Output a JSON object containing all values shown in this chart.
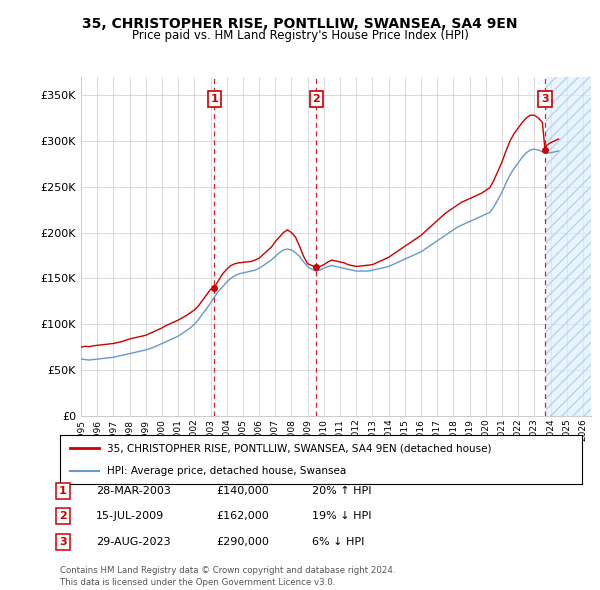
{
  "title": "35, CHRISTOPHER RISE, PONTLLIW, SWANSEA, SA4 9EN",
  "subtitle": "Price paid vs. HM Land Registry's House Price Index (HPI)",
  "ylabel_ticks": [
    "£0",
    "£50K",
    "£100K",
    "£150K",
    "£200K",
    "£250K",
    "£300K",
    "£350K"
  ],
  "ytick_values": [
    0,
    50000,
    100000,
    150000,
    200000,
    250000,
    300000,
    350000
  ],
  "ylim": [
    0,
    370000
  ],
  "xlim_start": 1995.0,
  "xlim_end": 2026.5,
  "transactions": [
    {
      "num": 1,
      "date": "28-MAR-2003",
      "year": 2003.23,
      "price": 140000,
      "pct": "20%",
      "dir": "↑"
    },
    {
      "num": 2,
      "date": "15-JUL-2009",
      "year": 2009.54,
      "price": 162000,
      "pct": "19%",
      "dir": "↓"
    },
    {
      "num": 3,
      "date": "29-AUG-2023",
      "year": 2023.66,
      "price": 290000,
      "pct": "6%",
      "dir": "↓"
    }
  ],
  "legend_line1": "35, CHRISTOPHER RISE, PONTLLIW, SWANSEA, SA4 9EN (detached house)",
  "legend_line2": "HPI: Average price, detached house, Swansea",
  "footer1": "Contains HM Land Registry data © Crown copyright and database right 2024.",
  "footer2": "This data is licensed under the Open Government Licence v3.0.",
  "red_color": "#cc0000",
  "blue_color": "#6699cc",
  "hpi_data": [
    [
      1995.0,
      62000
    ],
    [
      1995.25,
      61500
    ],
    [
      1995.5,
      61000
    ],
    [
      1995.75,
      61500
    ],
    [
      1996.0,
      62000
    ],
    [
      1996.25,
      62500
    ],
    [
      1996.5,
      63000
    ],
    [
      1996.75,
      63500
    ],
    [
      1997.0,
      64000
    ],
    [
      1997.25,
      65000
    ],
    [
      1997.5,
      66000
    ],
    [
      1997.75,
      67000
    ],
    [
      1998.0,
      68000
    ],
    [
      1998.25,
      69000
    ],
    [
      1998.5,
      70000
    ],
    [
      1998.75,
      71000
    ],
    [
      1999.0,
      72000
    ],
    [
      1999.25,
      73500
    ],
    [
      1999.5,
      75000
    ],
    [
      1999.75,
      77000
    ],
    [
      2000.0,
      79000
    ],
    [
      2000.25,
      81000
    ],
    [
      2000.5,
      83000
    ],
    [
      2000.75,
      85000
    ],
    [
      2001.0,
      87000
    ],
    [
      2001.25,
      90000
    ],
    [
      2001.5,
      93000
    ],
    [
      2001.75,
      96000
    ],
    [
      2002.0,
      100000
    ],
    [
      2002.25,
      105000
    ],
    [
      2002.5,
      111000
    ],
    [
      2002.75,
      117000
    ],
    [
      2003.0,
      123000
    ],
    [
      2003.25,
      130000
    ],
    [
      2003.5,
      136000
    ],
    [
      2003.75,
      141000
    ],
    [
      2004.0,
      146000
    ],
    [
      2004.25,
      150000
    ],
    [
      2004.5,
      153000
    ],
    [
      2004.75,
      155000
    ],
    [
      2005.0,
      156000
    ],
    [
      2005.25,
      157000
    ],
    [
      2005.5,
      158000
    ],
    [
      2005.75,
      159000
    ],
    [
      2006.0,
      161000
    ],
    [
      2006.25,
      164000
    ],
    [
      2006.5,
      167000
    ],
    [
      2006.75,
      170000
    ],
    [
      2007.0,
      174000
    ],
    [
      2007.25,
      178000
    ],
    [
      2007.5,
      181000
    ],
    [
      2007.75,
      182000
    ],
    [
      2008.0,
      181000
    ],
    [
      2008.25,
      178000
    ],
    [
      2008.5,
      174000
    ],
    [
      2008.75,
      168000
    ],
    [
      2009.0,
      163000
    ],
    [
      2009.25,
      160000
    ],
    [
      2009.5,
      158000
    ],
    [
      2009.75,
      159000
    ],
    [
      2010.0,
      161000
    ],
    [
      2010.25,
      163000
    ],
    [
      2010.5,
      164000
    ],
    [
      2010.75,
      163000
    ],
    [
      2011.0,
      162000
    ],
    [
      2011.25,
      161000
    ],
    [
      2011.5,
      160000
    ],
    [
      2011.75,
      159000
    ],
    [
      2012.0,
      158000
    ],
    [
      2012.25,
      158000
    ],
    [
      2012.5,
      158000
    ],
    [
      2012.75,
      158000
    ],
    [
      2013.0,
      159000
    ],
    [
      2013.25,
      160000
    ],
    [
      2013.5,
      161000
    ],
    [
      2013.75,
      162000
    ],
    [
      2014.0,
      163000
    ],
    [
      2014.25,
      165000
    ],
    [
      2014.5,
      167000
    ],
    [
      2014.75,
      169000
    ],
    [
      2015.0,
      171000
    ],
    [
      2015.25,
      173000
    ],
    [
      2015.5,
      175000
    ],
    [
      2015.75,
      177000
    ],
    [
      2016.0,
      179000
    ],
    [
      2016.25,
      182000
    ],
    [
      2016.5,
      185000
    ],
    [
      2016.75,
      188000
    ],
    [
      2017.0,
      191000
    ],
    [
      2017.25,
      194000
    ],
    [
      2017.5,
      197000
    ],
    [
      2017.75,
      200000
    ],
    [
      2018.0,
      203000
    ],
    [
      2018.25,
      206000
    ],
    [
      2018.5,
      208000
    ],
    [
      2018.75,
      210000
    ],
    [
      2019.0,
      212000
    ],
    [
      2019.25,
      214000
    ],
    [
      2019.5,
      216000
    ],
    [
      2019.75,
      218000
    ],
    [
      2020.0,
      220000
    ],
    [
      2020.25,
      222000
    ],
    [
      2020.5,
      228000
    ],
    [
      2020.75,
      236000
    ],
    [
      2021.0,
      244000
    ],
    [
      2021.25,
      254000
    ],
    [
      2021.5,
      263000
    ],
    [
      2021.75,
      270000
    ],
    [
      2022.0,
      276000
    ],
    [
      2022.25,
      282000
    ],
    [
      2022.5,
      287000
    ],
    [
      2022.75,
      290000
    ],
    [
      2023.0,
      291000
    ],
    [
      2023.25,
      290000
    ],
    [
      2023.5,
      288000
    ],
    [
      2023.75,
      287000
    ],
    [
      2024.0,
      287000
    ],
    [
      2024.25,
      288000
    ],
    [
      2024.5,
      289000
    ]
  ],
  "price_data": [
    [
      1995.0,
      75000
    ],
    [
      1995.25,
      76000
    ],
    [
      1995.5,
      75500
    ],
    [
      1995.75,
      76500
    ],
    [
      1996.0,
      77000
    ],
    [
      1996.25,
      77500
    ],
    [
      1996.5,
      78000
    ],
    [
      1996.75,
      78500
    ],
    [
      1997.0,
      79000
    ],
    [
      1997.25,
      80000
    ],
    [
      1997.5,
      81000
    ],
    [
      1997.75,
      82500
    ],
    [
      1998.0,
      84000
    ],
    [
      1998.25,
      85000
    ],
    [
      1998.5,
      86000
    ],
    [
      1998.75,
      87000
    ],
    [
      1999.0,
      88000
    ],
    [
      1999.25,
      90000
    ],
    [
      1999.5,
      92000
    ],
    [
      1999.75,
      94000
    ],
    [
      2000.0,
      96000
    ],
    [
      2000.25,
      98500
    ],
    [
      2000.5,
      100500
    ],
    [
      2000.75,
      102500
    ],
    [
      2001.0,
      104500
    ],
    [
      2001.25,
      107000
    ],
    [
      2001.5,
      109500
    ],
    [
      2001.75,
      112500
    ],
    [
      2002.0,
      115500
    ],
    [
      2002.25,
      120000
    ],
    [
      2002.5,
      126000
    ],
    [
      2002.75,
      132000
    ],
    [
      2003.0,
      138000
    ],
    [
      2003.23,
      140000
    ],
    [
      2003.5,
      148000
    ],
    [
      2003.75,
      155000
    ],
    [
      2004.0,
      160000
    ],
    [
      2004.25,
      164000
    ],
    [
      2004.5,
      166000
    ],
    [
      2004.75,
      167000
    ],
    [
      2005.0,
      167500
    ],
    [
      2005.25,
      168000
    ],
    [
      2005.5,
      168500
    ],
    [
      2005.75,
      170000
    ],
    [
      2006.0,
      172000
    ],
    [
      2006.25,
      176000
    ],
    [
      2006.5,
      180000
    ],
    [
      2006.75,
      184000
    ],
    [
      2007.0,
      190000
    ],
    [
      2007.25,
      195000
    ],
    [
      2007.5,
      200000
    ],
    [
      2007.75,
      203000
    ],
    [
      2008.0,
      200000
    ],
    [
      2008.25,
      195000
    ],
    [
      2008.5,
      185000
    ],
    [
      2008.75,
      174000
    ],
    [
      2009.0,
      166000
    ],
    [
      2009.54,
      162000
    ],
    [
      2009.75,
      163000
    ],
    [
      2010.0,
      165000
    ],
    [
      2010.25,
      168000
    ],
    [
      2010.5,
      170000
    ],
    [
      2010.75,
      169000
    ],
    [
      2011.0,
      168000
    ],
    [
      2011.25,
      167000
    ],
    [
      2011.5,
      165000
    ],
    [
      2011.75,
      164000
    ],
    [
      2012.0,
      163000
    ],
    [
      2012.25,
      163500
    ],
    [
      2012.5,
      164000
    ],
    [
      2012.75,
      164500
    ],
    [
      2013.0,
      165000
    ],
    [
      2013.25,
      167000
    ],
    [
      2013.5,
      169000
    ],
    [
      2013.75,
      171000
    ],
    [
      2014.0,
      173000
    ],
    [
      2014.25,
      176000
    ],
    [
      2014.5,
      179000
    ],
    [
      2014.75,
      182000
    ],
    [
      2015.0,
      185000
    ],
    [
      2015.25,
      188000
    ],
    [
      2015.5,
      191000
    ],
    [
      2015.75,
      194000
    ],
    [
      2016.0,
      197000
    ],
    [
      2016.25,
      201000
    ],
    [
      2016.5,
      205000
    ],
    [
      2016.75,
      209000
    ],
    [
      2017.0,
      213000
    ],
    [
      2017.25,
      217000
    ],
    [
      2017.5,
      221000
    ],
    [
      2017.75,
      224000
    ],
    [
      2018.0,
      227000
    ],
    [
      2018.25,
      230000
    ],
    [
      2018.5,
      233000
    ],
    [
      2018.75,
      235000
    ],
    [
      2019.0,
      237000
    ],
    [
      2019.25,
      239000
    ],
    [
      2019.5,
      241000
    ],
    [
      2019.75,
      243000
    ],
    [
      2020.0,
      246000
    ],
    [
      2020.25,
      249000
    ],
    [
      2020.5,
      257000
    ],
    [
      2020.75,
      267000
    ],
    [
      2021.0,
      277000
    ],
    [
      2021.25,
      289000
    ],
    [
      2021.5,
      300000
    ],
    [
      2021.75,
      308000
    ],
    [
      2022.0,
      314000
    ],
    [
      2022.25,
      320000
    ],
    [
      2022.5,
      325000
    ],
    [
      2022.75,
      328000
    ],
    [
      2023.0,
      328000
    ],
    [
      2023.25,
      325000
    ],
    [
      2023.5,
      320000
    ],
    [
      2023.66,
      290000
    ],
    [
      2023.75,
      295000
    ],
    [
      2024.0,
      298000
    ],
    [
      2024.25,
      300000
    ],
    [
      2024.5,
      302000
    ]
  ],
  "hatch_start": 2023.75,
  "background_color": "#ffffff",
  "grid_color": "#cccccc"
}
